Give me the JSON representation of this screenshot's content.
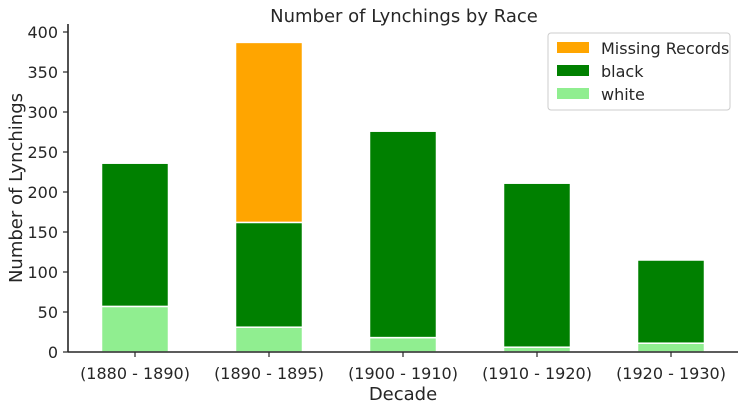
{
  "chart_data": {
    "type": "bar",
    "stacked": true,
    "title": "Number of Lynchings by Race",
    "xlabel": "Decade",
    "ylabel": "Number of Lynchings",
    "ylim": [
      0,
      410
    ],
    "yticks": [
      0,
      50,
      100,
      150,
      200,
      250,
      300,
      350,
      400
    ],
    "categories": [
      "(1880 - 1890)",
      "(1890 - 1895)",
      "(1900 - 1910)",
      "(1910 - 1920)",
      "(1920 - 1930)"
    ],
    "series": [
      {
        "name": "white",
        "color": "#90ee90",
        "values": [
          57,
          31,
          18,
          6,
          11
        ]
      },
      {
        "name": "black",
        "color": "#008000",
        "values": [
          179,
          131,
          258,
          205,
          104
        ]
      },
      {
        "name": "Missing Records",
        "color": "#ffa500",
        "values": [
          0,
          225,
          0,
          0,
          0
        ]
      }
    ],
    "legend": {
      "position": "top-right",
      "order": [
        "Missing Records",
        "black",
        "white"
      ]
    },
    "grid": false
  }
}
